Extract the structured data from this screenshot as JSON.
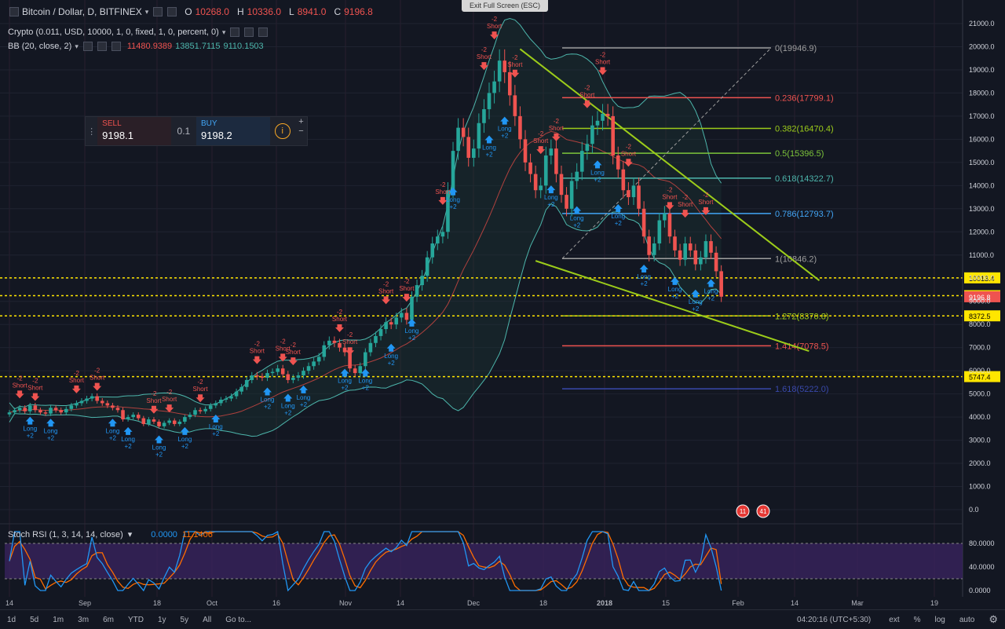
{
  "window": {
    "exit_fullscreen": "Exit Full Screen (ESC)"
  },
  "header": {
    "symbol": "Bitcoin / Dollar, D, BITFINEX",
    "ohlc": [
      {
        "k": "O",
        "v": "10268.0"
      },
      {
        "k": "H",
        "v": "10336.0"
      },
      {
        "k": "L",
        "v": "8941.0"
      },
      {
        "k": "C",
        "v": "9196.8"
      }
    ],
    "strategy": "Crypto (0.011, USD, 10000, 1, 0, fixed, 1, 0, percent, 0)",
    "bb_label": "BB (20, close, 2)",
    "bb_values": [
      "11480.9389",
      "13851.7115",
      "9110.1503"
    ]
  },
  "trade_panel": {
    "sell_label": "SELL",
    "sell_price": "9198.1",
    "qty": "0.1",
    "buy_label": "BUY",
    "buy_price": "9198.2",
    "info": "i",
    "plus": "+",
    "minus": "−"
  },
  "stoch": {
    "label": "Stoch RSI (1, 3, 14, 14, close)",
    "values": [
      "0.0000",
      "11.1406"
    ]
  },
  "colors": {
    "bg": "#131722",
    "up": "#26a69a",
    "down": "#ef5350",
    "long": "#2196f3",
    "short": "#ef5350",
    "band": "#1e3a37",
    "stoch_k": "#2196f3",
    "stoch_d": "#ff6d00",
    "stoch_fill": "#3b2462",
    "trend": "#9ccc1a",
    "level_yellow": "#ffe600"
  },
  "bottom_bar": {
    "ranges": [
      "1d",
      "5d",
      "1m",
      "3m",
      "6m",
      "YTD",
      "1y",
      "5y",
      "All"
    ],
    "goto": "Go to...",
    "clock": "04:20:16 (UTC+5:30)",
    "options": [
      "ext",
      "%",
      "log",
      "auto"
    ],
    "settings_icon": "gear-icon"
  },
  "chart_data": {
    "type": "candlestick",
    "title": "Bitcoin / Dollar, D, BITFINEX",
    "x_ticks": [
      "14",
      "Sep",
      "18",
      "Oct",
      "16",
      "Nov",
      "14",
      "Dec",
      "18",
      "2018",
      "15",
      "Feb",
      "14",
      "Mar",
      "19"
    ],
    "y_ticks": [
      "21000.0",
      "20000.0",
      "19000.0",
      "18000.0",
      "17000.0",
      "16000.0",
      "15000.0",
      "14000.0",
      "13000.0",
      "12000.0",
      "11000.0",
      "10000.0",
      "9000.0",
      "8000.0",
      "7000.0",
      "6000.0",
      "5000.0",
      "4000.0",
      "3000.0",
      "2000.0",
      "1000.0",
      "0.0"
    ],
    "ylim": [
      0,
      21000
    ],
    "current_price": "9196.8",
    "price_lines": [
      {
        "label": "10013.4",
        "value": 10013.4
      },
      {
        "label": "9244.2",
        "value": 9244.2
      },
      {
        "label": "8372.5",
        "value": 8372.5
      },
      {
        "label": "5747.4",
        "value": 5747.4
      }
    ],
    "fib_levels": [
      {
        "label": "0(19946.9)",
        "value": 19946.9,
        "color": "#9e9e9e"
      },
      {
        "label": "0.236(17799.1)",
        "value": 17799.1,
        "color": "#ef5350"
      },
      {
        "label": "0.382(16470.4)",
        "value": 16470.4,
        "color": "#9ccc1a"
      },
      {
        "label": "0.5(15396.5)",
        "value": 15396.5,
        "color": "#7cc43a"
      },
      {
        "label": "0.618(14322.7)",
        "value": 14322.7,
        "color": "#4db6ac"
      },
      {
        "label": "0.786(12793.7)",
        "value": 12793.7,
        "color": "#42a5f5"
      },
      {
        "label": "1(10846.2)",
        "value": 10846.2,
        "color": "#9e9e9e"
      },
      {
        "label": "1.272(8370.8)",
        "value": 8370.8,
        "color": "#9ccc1a"
      },
      {
        "label": "1.414(7078.5)",
        "value": 7078.5,
        "color": "#ef5350"
      },
      {
        "label": "1.618(5222.0)",
        "value": 5222.0,
        "color": "#3949ab"
      }
    ],
    "trendlines": [
      {
        "from": {
          "d": 99,
          "v": 19900
        },
        "to": {
          "d": 157,
          "v": 9900
        }
      },
      {
        "from": {
          "d": 102,
          "v": 10750
        },
        "to": {
          "d": 155,
          "v": 6850
        }
      }
    ],
    "closes": [
      4200,
      4300,
      4400,
      4250,
      4500,
      4300,
      4200,
      4150,
      4400,
      4300,
      4200,
      4350,
      4500,
      4600,
      4700,
      4800,
      4900,
      4700,
      4600,
      4500,
      4400,
      4300,
      3900,
      4000,
      4100,
      3950,
      3700,
      3900,
      3800,
      3600,
      3750,
      3850,
      3700,
      3800,
      4000,
      4100,
      4300,
      4250,
      4350,
      4500,
      4600,
      4750,
      4800,
      4900,
      5100,
      5300,
      5600,
      5800,
      5750,
      5700,
      5900,
      5950,
      6100,
      5850,
      5600,
      5700,
      5800,
      6000,
      6200,
      6400,
      6600,
      7100,
      7300,
      7200,
      7000,
      6800,
      6100,
      5900,
      6200,
      6800,
      7200,
      7500,
      7800,
      8100,
      8000,
      8300,
      8500,
      8200,
      9200,
      9700,
      10100,
      10900,
      11500,
      11800,
      12000,
      13800,
      15500,
      16500,
      16100,
      15200,
      15600,
      16700,
      17300,
      18000,
      18500,
      19400,
      18900,
      17900,
      17000,
      16000,
      15000,
      14500,
      13800,
      14000,
      15300,
      15600,
      14500,
      13600,
      13000,
      14200,
      14600,
      15500,
      15800,
      16600,
      16800,
      17100,
      17000,
      15300,
      14700,
      13800,
      13500,
      14000,
      13000,
      11800,
      11000,
      11500,
      12500,
      12800,
      11800,
      11200,
      10800,
      11500,
      11200,
      10600,
      10900,
      11600,
      11100,
      10300,
      9200
    ],
    "signals": [
      {
        "i": 2,
        "t": "s",
        "label": "Short",
        "n": "-2"
      },
      {
        "i": 5,
        "t": "s",
        "label": "Short",
        "n": "-2"
      },
      {
        "i": 4,
        "t": "l",
        "label": "Long",
        "n": "+2"
      },
      {
        "i": 8,
        "t": "l",
        "label": "Long",
        "n": "+2"
      },
      {
        "i": 13,
        "t": "s",
        "label": "Short",
        "n": "-2"
      },
      {
        "i": 17,
        "t": "s",
        "label": "Short",
        "n": "-2"
      },
      {
        "i": 20,
        "t": "l",
        "label": "Long",
        "n": "+2"
      },
      {
        "i": 23,
        "t": "l",
        "label": "Long",
        "n": "+2"
      },
      {
        "i": 28,
        "t": "s",
        "label": "Short",
        "n": "-2"
      },
      {
        "i": 31,
        "t": "s",
        "label": "Short",
        "n": "-2"
      },
      {
        "i": 29,
        "t": "l",
        "label": "Long",
        "n": "+2"
      },
      {
        "i": 34,
        "t": "l",
        "label": "Long",
        "n": "+2"
      },
      {
        "i": 37,
        "t": "s",
        "label": "Short",
        "n": "-2"
      },
      {
        "i": 40,
        "t": "l",
        "label": "Long",
        "n": "+2"
      },
      {
        "i": 48,
        "t": "s",
        "label": "Short",
        "n": "-2"
      },
      {
        "i": 50,
        "t": "l",
        "label": "Long",
        "n": "+2"
      },
      {
        "i": 53,
        "t": "s",
        "label": "Short",
        "n": "-2"
      },
      {
        "i": 55,
        "t": "s",
        "label": "Short",
        "n": "-2"
      },
      {
        "i": 54,
        "t": "l",
        "label": "Long",
        "n": "+2"
      },
      {
        "i": 57,
        "t": "l",
        "label": "Long",
        "n": "+2"
      },
      {
        "i": 64,
        "t": "s",
        "label": "Short",
        "n": "-2"
      },
      {
        "i": 66,
        "t": "s",
        "label": "Short",
        "n": "-2"
      },
      {
        "i": 65,
        "t": "l",
        "label": "Long",
        "n": "+2"
      },
      {
        "i": 69,
        "t": "l",
        "label": "Long",
        "n": "+2"
      },
      {
        "i": 73,
        "t": "s",
        "label": "Short",
        "n": "-2"
      },
      {
        "i": 77,
        "t": "s",
        "label": "Short",
        "n": "-2"
      },
      {
        "i": 74,
        "t": "l",
        "label": "Long",
        "n": "+2"
      },
      {
        "i": 78,
        "t": "l",
        "label": "Long",
        "n": "+2"
      },
      {
        "i": 84,
        "t": "s",
        "label": "Short",
        "n": "-2"
      },
      {
        "i": 86,
        "t": "l",
        "label": "Long",
        "n": "+2"
      },
      {
        "i": 92,
        "t": "s",
        "label": "Short",
        "n": "-2"
      },
      {
        "i": 94,
        "t": "s",
        "label": "Short",
        "n": "-2"
      },
      {
        "i": 93,
        "t": "l",
        "label": "Long",
        "n": "+2"
      },
      {
        "i": 96,
        "t": "l",
        "label": "Long",
        "n": "+2"
      },
      {
        "i": 98,
        "t": "s",
        "label": "Short",
        "n": "-2"
      },
      {
        "i": 103,
        "t": "s",
        "label": "Short",
        "n": "-2"
      },
      {
        "i": 106,
        "t": "s",
        "label": "Short",
        "n": "-2"
      },
      {
        "i": 105,
        "t": "l",
        "label": "Long",
        "n": "+2"
      },
      {
        "i": 110,
        "t": "l",
        "label": "Long",
        "n": "+2"
      },
      {
        "i": 112,
        "t": "s",
        "label": "Short",
        "n": "-2"
      },
      {
        "i": 115,
        "t": "s",
        "label": "Short",
        "n": "-2"
      },
      {
        "i": 114,
        "t": "l",
        "label": "Long",
        "n": "+2"
      },
      {
        "i": 118,
        "t": "l",
        "label": "Long",
        "n": "+2"
      },
      {
        "i": 120,
        "t": "s",
        "label": "Short",
        "n": "-2"
      },
      {
        "i": 123,
        "t": "l",
        "label": "Long",
        "n": "+2"
      },
      {
        "i": 128,
        "t": "s",
        "label": "Short",
        "n": "-2"
      },
      {
        "i": 131,
        "t": "s",
        "label": "Short",
        "n": "-2"
      },
      {
        "i": 129,
        "t": "l",
        "label": "Long",
        "n": "+2"
      },
      {
        "i": 133,
        "t": "l",
        "label": "Long",
        "n": "+2"
      },
      {
        "i": 135,
        "t": "s",
        "label": "Short",
        "n": "-2"
      },
      {
        "i": 136,
        "t": "l",
        "label": "Long",
        "n": "+2"
      }
    ],
    "event_badges": [
      "11",
      "41"
    ],
    "stoch": {
      "ylim": [
        0,
        100
      ],
      "y_ticks": [
        "80.0000",
        "40.0000",
        "0.0000"
      ],
      "band": [
        20,
        80
      ],
      "last_k": 0,
      "last_d": 11.1406
    }
  }
}
